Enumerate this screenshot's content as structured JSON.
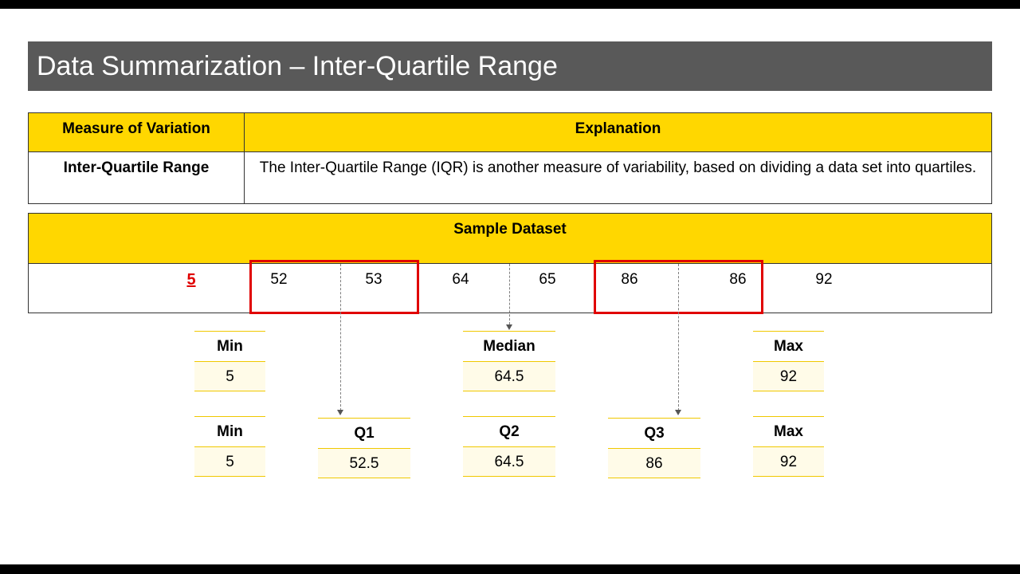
{
  "slide": {
    "title": "Data Summarization – Inter-Quartile Range"
  },
  "table": {
    "headers": [
      "Measure of Variation",
      "Explanation"
    ],
    "row": {
      "measure": "Inter-Quartile Range",
      "explanation": "The Inter-Quartile Range (IQR) is another measure of variability, based on dividing a data set into quartiles."
    }
  },
  "dataset": {
    "header": "Sample Dataset",
    "values": [
      "5",
      "52",
      "53",
      "64",
      "65",
      "86",
      "86",
      "92"
    ]
  },
  "summary_row1": [
    {
      "label": "Min",
      "value": "5"
    },
    {
      "label": "Median",
      "value": "64.5"
    },
    {
      "label": "Max",
      "value": "92"
    }
  ],
  "summary_row2": [
    {
      "label": "Min",
      "value": "5"
    },
    {
      "label": "Q1",
      "value": "52.5"
    },
    {
      "label": "Q2",
      "value": "64.5"
    },
    {
      "label": "Q3",
      "value": "86"
    },
    {
      "label": "Max",
      "value": "92"
    }
  ],
  "colors": {
    "header_yellow": "#FFD700",
    "title_gray": "#595959",
    "highlight_red": "#E00000"
  }
}
